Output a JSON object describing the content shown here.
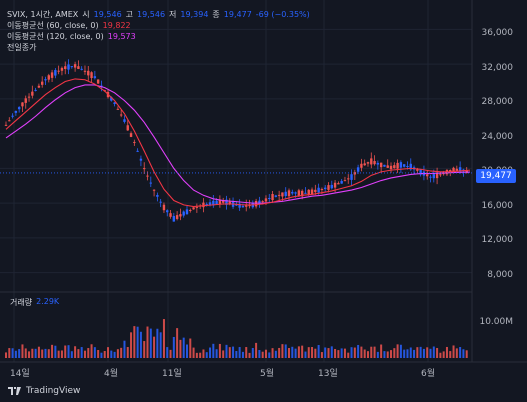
{
  "header": {
    "symbol_line": "SVIX, 1시간, AMEX",
    "open_label": "시",
    "open_value": "19,546",
    "high_label": "고",
    "high_value": "19,546",
    "low_label": "저",
    "low_value": "19,394",
    "close_label": "종",
    "close_value": "19,477",
    "change_value": "-69 (−0.35%)"
  },
  "indicators": [
    {
      "name": "이동평균선 (60, close, 0)",
      "value": "19,822",
      "color": "#f23645"
    },
    {
      "name": "이동평균선 (120, close, 0)",
      "value": "19,573",
      "color": "#e040fb"
    },
    {
      "name": "전일종가",
      "value": "",
      "color": "#d1d4dc"
    }
  ],
  "volume": {
    "label": "거래량",
    "value": "2.29K",
    "axis_label": "10.00M"
  },
  "price_axis": [
    "36,000",
    "32,000",
    "28,000",
    "24,000",
    "20,000",
    "16,000",
    "12,000",
    "8,000"
  ],
  "current_price": "19,477",
  "time_axis": [
    "14일",
    "4월",
    "11일",
    "5월",
    "13일",
    "6월"
  ],
  "branding": "TradingView",
  "colors": {
    "background": "#131722",
    "up": "#ef5350",
    "down": "#2962ff",
    "ma60": "#f23645",
    "ma120": "#e040fb",
    "accent": "#2962ff"
  },
  "chart_data": {
    "type": "candlestick",
    "ylim": [
      6000,
      38000
    ],
    "series_price": [
      25000,
      26500,
      27800,
      29000,
      30200,
      31000,
      31600,
      31800,
      31200,
      30500,
      29000,
      27500,
      25500,
      23000,
      20000,
      17500,
      15500,
      14200,
      14800,
      15400,
      15800,
      16000,
      16200,
      15900,
      15600,
      15800,
      16200,
      16700,
      17000,
      17200,
      17100,
      17300,
      17600,
      17900,
      18400,
      19000,
      20300,
      20800,
      20400,
      20100,
      20400,
      20200,
      19600,
      19000,
      19300,
      19700,
      19900,
      19500
    ],
    "series_ma60": [
      24500,
      25500,
      26500,
      27500,
      28500,
      29300,
      30000,
      30300,
      30200,
      29700,
      28900,
      27800,
      26300,
      24300,
      22000,
      19600,
      17600,
      16300,
      15800,
      15600,
      15700,
      15800,
      15900,
      15900,
      15800,
      15800,
      15900,
      16100,
      16400,
      16700,
      16900,
      17000,
      17200,
      17400,
      17700,
      18000,
      18500,
      19200,
      19600,
      19800,
      19900,
      20000,
      19900,
      19700,
      19600,
      19600,
      19700,
      19800
    ],
    "series_ma120": [
      23500,
      24300,
      25100,
      26000,
      27000,
      27900,
      28700,
      29300,
      29600,
      29600,
      29300,
      28700,
      27800,
      26700,
      25300,
      23600,
      21800,
      20000,
      18600,
      17500,
      16900,
      16500,
      16300,
      16200,
      16100,
      16000,
      16000,
      16100,
      16200,
      16400,
      16600,
      16800,
      16900,
      17100,
      17300,
      17500,
      17800,
      18200,
      18600,
      18900,
      19100,
      19300,
      19400,
      19400,
      19450,
      19500,
      19550,
      19573
    ]
  }
}
